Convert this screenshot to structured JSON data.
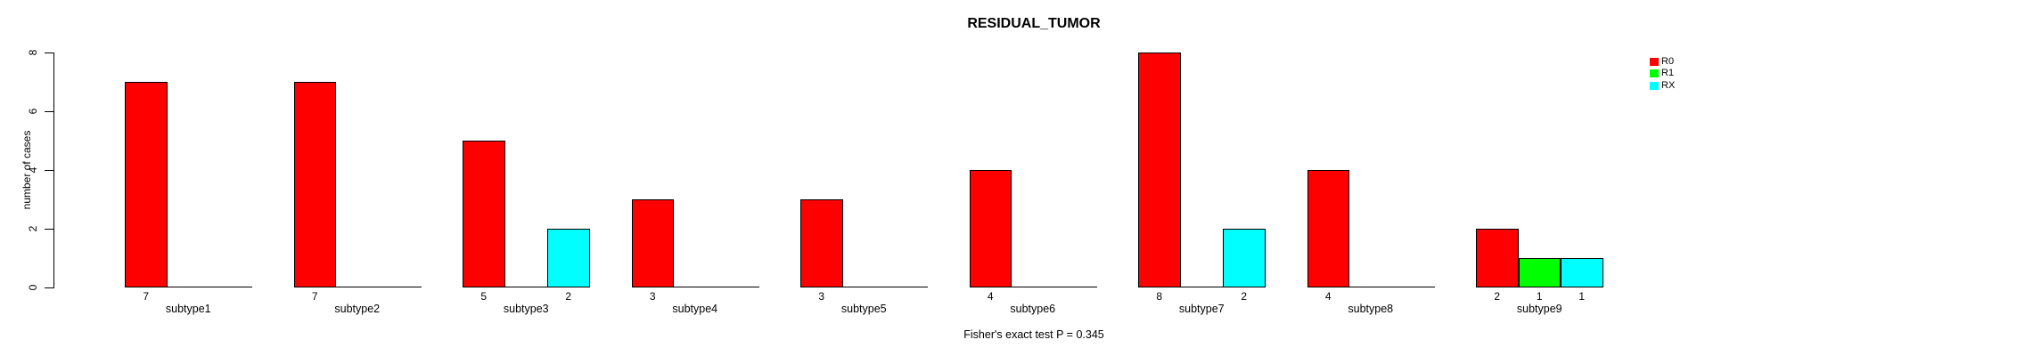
{
  "chart_data": {
    "type": "bar",
    "title": "RESIDUAL_TUMOR",
    "ylabel": "number of cases",
    "xlabel": "",
    "categories": [
      "subtype1",
      "subtype2",
      "subtype3",
      "subtype4",
      "subtype5",
      "subtype6",
      "subtype7",
      "subtype8",
      "subtype9"
    ],
    "series": [
      {
        "name": "R0",
        "color": "#ff0000",
        "values": [
          7,
          7,
          5,
          3,
          3,
          4,
          8,
          4,
          2
        ]
      },
      {
        "name": "R1",
        "color": "#00ff00",
        "values": [
          0,
          0,
          0,
          0,
          0,
          0,
          0,
          0,
          1
        ]
      },
      {
        "name": "RX",
        "color": "#00ffff",
        "values": [
          0,
          0,
          2,
          0,
          0,
          0,
          2,
          0,
          1
        ]
      }
    ],
    "bar_value_labels_shown": true,
    "ylim": [
      0,
      8
    ],
    "yticks": [
      0,
      2,
      4,
      6,
      8
    ],
    "grid": false,
    "legend_position": "top-right",
    "annotation": "Fisher's exact test P = 0.345"
  }
}
